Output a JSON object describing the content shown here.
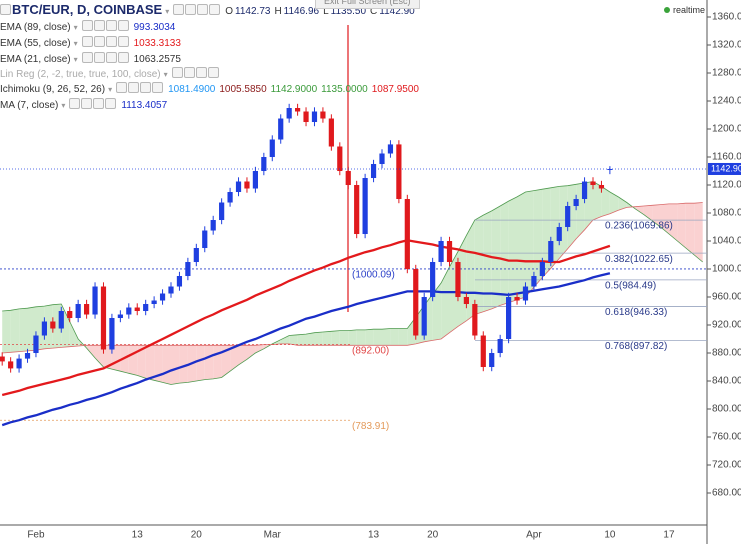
{
  "chart_data": {
    "type": "candlestick",
    "symbol": "BTC/EUR, D, COINBASE",
    "quote": [
      {
        "key": "O",
        "value": "1142.73"
      },
      {
        "key": "H",
        "value": "1146.96"
      },
      {
        "key": "L",
        "value": "1135.50"
      },
      {
        "key": "C",
        "value": "1142.90"
      }
    ],
    "banner": "Exit Full Screen (Esc)",
    "realtime": "realtime",
    "last_label": "1142.90",
    "up_color": "#1f3fe0",
    "down_color": "#e0191d",
    "categories": [
      null,
      null,
      null,
      null,
      "Feb",
      null,
      null,
      null,
      null,
      null,
      null,
      null,
      null,
      null,
      null,
      null,
      "13",
      null,
      null,
      null,
      null,
      null,
      null,
      "20",
      null,
      null,
      null,
      null,
      null,
      null,
      null,
      null,
      "Mar",
      null,
      null,
      null,
      null,
      null,
      null,
      null,
      null,
      null,
      null,
      null,
      "13",
      null,
      null,
      null,
      null,
      null,
      null,
      "20",
      null,
      null,
      null,
      null,
      null,
      null,
      null,
      null,
      null,
      null,
      null,
      "Apr",
      null,
      null,
      null,
      null,
      null,
      null,
      null,
      null,
      "10",
      null,
      null,
      null,
      null,
      null,
      null,
      "17",
      null,
      null,
      null,
      null
    ],
    "open": [
      875,
      868,
      858,
      872,
      880,
      905,
      925,
      915,
      940,
      930,
      950,
      935,
      975,
      885,
      930,
      935,
      945,
      940,
      950,
      955,
      965,
      975,
      990,
      1010,
      1030,
      1055,
      1070,
      1095,
      1110,
      1125,
      1115,
      1140,
      1160,
      1185,
      1215,
      1230,
      1225,
      1210,
      1225,
      1215,
      1175,
      1140,
      1120,
      1050,
      1130,
      1150,
      1165,
      1178,
      1100,
      1000,
      905,
      960,
      1010,
      1040,
      1010,
      960,
      950,
      905,
      860,
      880,
      900,
      960,
      955,
      975,
      990,
      1010,
      1040,
      1060,
      1090,
      1100,
      1125,
      1120,
      1142.73,
      null,
      null,
      null,
      null,
      null,
      null,
      null,
      null,
      null,
      null,
      null
    ],
    "high": [
      881,
      874,
      878,
      886,
      911,
      931,
      931,
      946,
      946,
      956,
      956,
      981,
      981,
      936,
      941,
      951,
      951,
      956,
      961,
      971,
      981,
      996,
      1016,
      1036,
      1061,
      1076,
      1101,
      1116,
      1131,
      1131,
      1146,
      1166,
      1191,
      1221,
      1236,
      1236,
      1231,
      1231,
      1231,
      1221,
      1181,
      1146,
      1126,
      1136,
      1156,
      1171,
      1184,
      1184,
      1106,
      1006,
      966,
      1016,
      1046,
      1046,
      1016,
      966,
      956,
      911,
      886,
      906,
      966,
      966,
      981,
      996,
      1016,
      1046,
      1066,
      1096,
      1106,
      1131,
      1131,
      1126,
      1146.96,
      null,
      null,
      null,
      null,
      null,
      null,
      null,
      null,
      null,
      null,
      null
    ],
    "low": [
      862,
      852,
      852,
      866,
      874,
      899,
      909,
      909,
      924,
      924,
      929,
      929,
      879,
      879,
      924,
      929,
      934,
      934,
      944,
      949,
      959,
      969,
      984,
      1004,
      1024,
      1049,
      1064,
      1089,
      1104,
      1109,
      1109,
      1134,
      1154,
      1179,
      1209,
      1219,
      1204,
      1204,
      1209,
      1169,
      1134,
      1114,
      1044,
      1044,
      1124,
      1144,
      1159,
      1094,
      994,
      899,
      899,
      954,
      1004,
      1004,
      954,
      944,
      899,
      854,
      854,
      874,
      894,
      949,
      949,
      969,
      984,
      1004,
      1034,
      1054,
      1084,
      1094,
      1114,
      1109,
      1135.5,
      null,
      null,
      null,
      null,
      null,
      null,
      null,
      null,
      null,
      null,
      null
    ],
    "close": [
      868,
      858,
      872,
      880,
      905,
      925,
      915,
      940,
      930,
      950,
      935,
      975,
      885,
      930,
      935,
      945,
      940,
      950,
      955,
      965,
      975,
      990,
      1010,
      1030,
      1055,
      1070,
      1095,
      1110,
      1125,
      1115,
      1140,
      1160,
      1185,
      1215,
      1230,
      1225,
      1210,
      1225,
      1215,
      1175,
      1140,
      1120,
      1050,
      1130,
      1150,
      1165,
      1178,
      1100,
      1000,
      905,
      960,
      1010,
      1040,
      1010,
      960,
      950,
      905,
      860,
      880,
      900,
      960,
      955,
      975,
      990,
      1010,
      1040,
      1060,
      1090,
      1100,
      1125,
      1120,
      1115,
      1142.9,
      null,
      null,
      null,
      null,
      null,
      null,
      null,
      null,
      null,
      null,
      null
    ],
    "ylim": [
      634.3,
      1384.3
    ],
    "yticks": [
      {
        "value": 1360,
        "label": "1360.00"
      },
      {
        "value": 1320,
        "label": "1320.00"
      },
      {
        "value": 1280,
        "label": "1280.00"
      },
      {
        "value": 1240,
        "label": "1240.00"
      },
      {
        "value": 1200,
        "label": "1200.00"
      },
      {
        "value": 1160,
        "label": "1160.00"
      },
      {
        "value": 1120,
        "label": "1120.00"
      },
      {
        "value": 1080,
        "label": "1080.00"
      },
      {
        "value": 1040,
        "label": "1040.00"
      },
      {
        "value": 1000,
        "label": "1000.00"
      },
      {
        "value": 960,
        "label": "960.00"
      },
      {
        "value": 920,
        "label": "920.00"
      },
      {
        "value": 880,
        "label": "880.00"
      },
      {
        "value": 840,
        "label": "840.00"
      },
      {
        "value": 800,
        "label": "800.00"
      },
      {
        "value": 760,
        "label": "760.00"
      },
      {
        "value": 720,
        "label": "720.00"
      },
      {
        "value": 680,
        "label": "680.00"
      }
    ],
    "grid": false,
    "series": [
      {
        "name": "EMA (89, close)",
        "reading": "993.3034",
        "color": "#1a2ec8",
        "values": [
          777,
          781,
          784,
          788,
          791,
          795,
          799,
          802,
          806,
          809,
          813,
          816,
          820,
          824,
          829,
          833,
          837,
          842,
          846,
          850,
          855,
          859,
          863,
          868,
          872,
          877,
          881,
          886,
          891,
          896,
          900,
          905,
          910,
          915,
          919,
          924,
          929,
          932,
          936,
          940,
          943,
          946,
          950,
          953,
          956,
          959,
          962,
          965,
          968,
          968,
          968,
          968,
          967,
          967,
          967,
          966,
          966,
          965,
          965,
          964,
          963,
          965,
          967,
          969,
          971,
          973,
          975,
          978,
          981,
          984,
          988,
          991,
          994,
          null,
          null,
          null,
          null,
          null,
          null,
          null,
          null,
          null,
          null,
          null
        ]
      },
      {
        "name": "EMA (55, close)",
        "reading": "1033.3133",
        "color": "#e3191c",
        "values": [
          820,
          823,
          826,
          830,
          833,
          836,
          839,
          842,
          845,
          849,
          852,
          855,
          858,
          864,
          870,
          876,
          882,
          888,
          894,
          900,
          906,
          912,
          918,
          924,
          930,
          935,
          941,
          946,
          951,
          956,
          962,
          967,
          972,
          977,
          983,
          988,
          993,
          998,
          1002,
          1007,
          1011,
          1016,
          1020,
          1024,
          1027,
          1031,
          1034,
          1038,
          1041,
          1039,
          1037,
          1035,
          1032,
          1030,
          1028,
          1025,
          1023,
          1020,
          1017,
          1015,
          1012,
          1012,
          1011,
          1011,
          1011,
          1010,
          1010,
          1014,
          1018,
          1021,
          1025,
          1029,
          1033,
          null,
          null,
          null,
          null,
          null,
          null,
          null,
          null,
          null,
          null,
          null
        ]
      },
      {
        "name": "EMA (21, close)",
        "reading": "1063.2575",
        "color": "#333333"
      },
      {
        "name": "Lin Reg (2, -2, true, true, 100, close)",
        "color": "#aaaaaa"
      },
      {
        "name": "Ichimoku (9, 26, 52, 26)",
        "readings": [
          "1081.4900",
          "1005.5850",
          "1142.9000",
          "1135.0000",
          "1087.9500"
        ],
        "reading_colors": [
          "#2196f3",
          "#8b1a1a",
          "#3a9a3a",
          "#3a9a3a",
          "#e0191d"
        ],
        "up_color": "#c8e6c3",
        "down_color": "#f9c9c9",
        "span_a_color": "#4f9a4f",
        "span_b_color": "#d96a6a",
        "span_a": [
          940,
          941,
          943,
          944,
          946,
          947,
          949,
          950,
          925,
          900,
          887,
          873,
          860,
          857,
          854,
          851,
          848,
          844,
          841,
          838,
          835,
          837,
          838,
          840,
          842,
          843,
          845,
          854,
          863,
          871,
          880,
          886,
          893,
          899,
          905,
          906,
          907,
          909,
          910,
          911,
          912,
          912,
          913,
          913,
          914,
          914,
          915,
          915,
          915,
          931,
          948,
          964,
          980,
          1003,
          1025,
          1048,
          1070,
          1077,
          1083,
          1090,
          1097,
          1103,
          1110,
          1112,
          1114,
          1116,
          1118,
          1119,
          1121,
          1123,
          1125,
          1118,
          1110,
          1103,
          1095,
          1086,
          1078,
          1069,
          1060,
          1050,
          1040,
          1030,
          1020,
          1010
        ],
        "span_b": [
          880,
          881,
          882,
          883,
          884,
          886,
          887,
          888,
          889,
          890,
          891,
          891,
          891,
          891,
          891,
          891,
          891,
          891,
          891,
          891,
          891,
          891,
          891,
          891,
          891,
          891,
          891,
          891,
          891,
          891,
          891,
          892,
          892,
          893,
          893,
          891,
          891,
          891,
          891,
          891,
          891,
          891,
          891,
          891,
          891,
          891,
          891,
          891,
          891,
          893,
          896,
          898,
          900,
          909,
          918,
          926,
          935,
          939,
          943,
          948,
          952,
          956,
          960,
          974,
          988,
          1001,
          1015,
          1029,
          1043,
          1056,
          1070,
          1075,
          1079,
          1084,
          1088,
          1089,
          1090,
          1091,
          1092,
          1093,
          1093,
          1094,
          1094,
          1095
        ]
      },
      {
        "name": "MA (7, close)",
        "reading": "1113.4057",
        "color": "#1a2ec8"
      }
    ],
    "levels": [
      {
        "label": "(1000.09)",
        "value": 1000.09,
        "color": "#2a3fc8"
      },
      {
        "label": "(892.00)",
        "value": 892,
        "color": "#e04545"
      },
      {
        "label": "(783.91)",
        "value": 783.91,
        "color": "#e39a5a"
      }
    ],
    "fib": [
      {
        "label": "0.236(1069.86)",
        "value": 1069.86
      },
      {
        "label": "0.382(1022.65)",
        "value": 1022.65
      },
      {
        "label": "0.5(984.49)",
        "value": 984.49
      },
      {
        "label": "0.618(946.33)",
        "value": 946.33
      },
      {
        "label": "0.768(897.82)",
        "value": 897.82
      }
    ]
  }
}
